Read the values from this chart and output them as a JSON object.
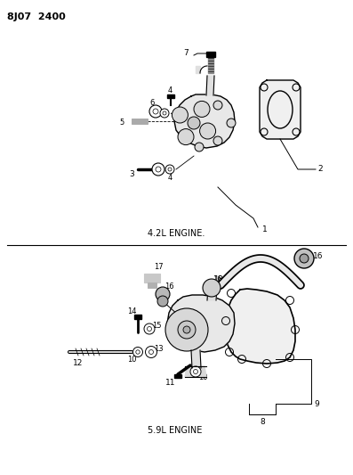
{
  "title": "8J07  2400",
  "background_color": "#ffffff",
  "top_label": "4.2L ENGINE.",
  "bottom_label": "5.9L ENGINE",
  "fig_width": 3.97,
  "fig_height": 5.33,
  "dpi": 100
}
